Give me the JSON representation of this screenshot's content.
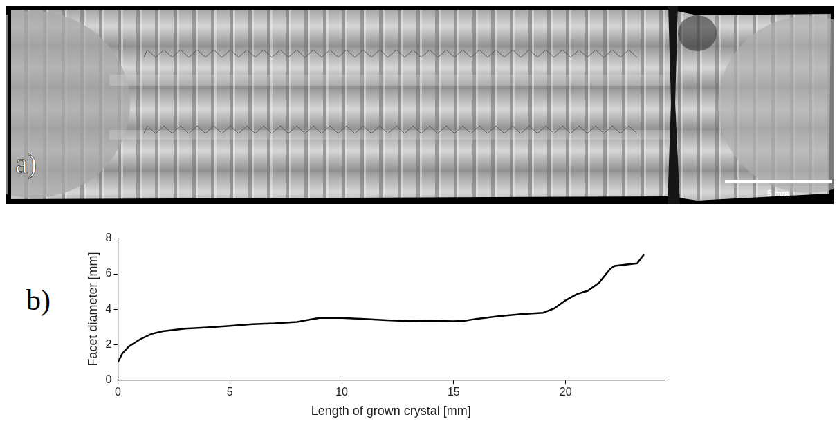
{
  "image_panel": {
    "panel_label": "a)",
    "scale_bar": "5 mm"
  },
  "chart_data": {
    "type": "line",
    "panel_label": "b)",
    "x_label": "Length of grown crystal [mm]",
    "y_label": "Facet diameter [mm]",
    "x": [
      0,
      0.2,
      0.5,
      1,
      1.5,
      2,
      3,
      4,
      5,
      6,
      7,
      8,
      8.5,
      9,
      10,
      11,
      12,
      13,
      14,
      15,
      15.5,
      16,
      17,
      18,
      19,
      19.5,
      20,
      20.5,
      21,
      21.5,
      22,
      22.2,
      23.2,
      23.5
    ],
    "values": [
      1.0,
      1.5,
      1.9,
      2.3,
      2.6,
      2.75,
      2.9,
      2.97,
      3.05,
      3.15,
      3.2,
      3.28,
      3.4,
      3.5,
      3.5,
      3.45,
      3.38,
      3.33,
      3.35,
      3.32,
      3.35,
      3.45,
      3.6,
      3.72,
      3.8,
      4.05,
      4.5,
      4.85,
      5.05,
      5.5,
      6.3,
      6.45,
      6.6,
      7.1
    ],
    "color": "#000000",
    "xlim": [
      0,
      24.4
    ],
    "xticks": [
      0,
      5,
      10,
      15,
      20
    ],
    "ylim": [
      0,
      8
    ],
    "yticks": [
      0,
      2,
      4,
      6,
      8
    ],
    "grid": false
  }
}
